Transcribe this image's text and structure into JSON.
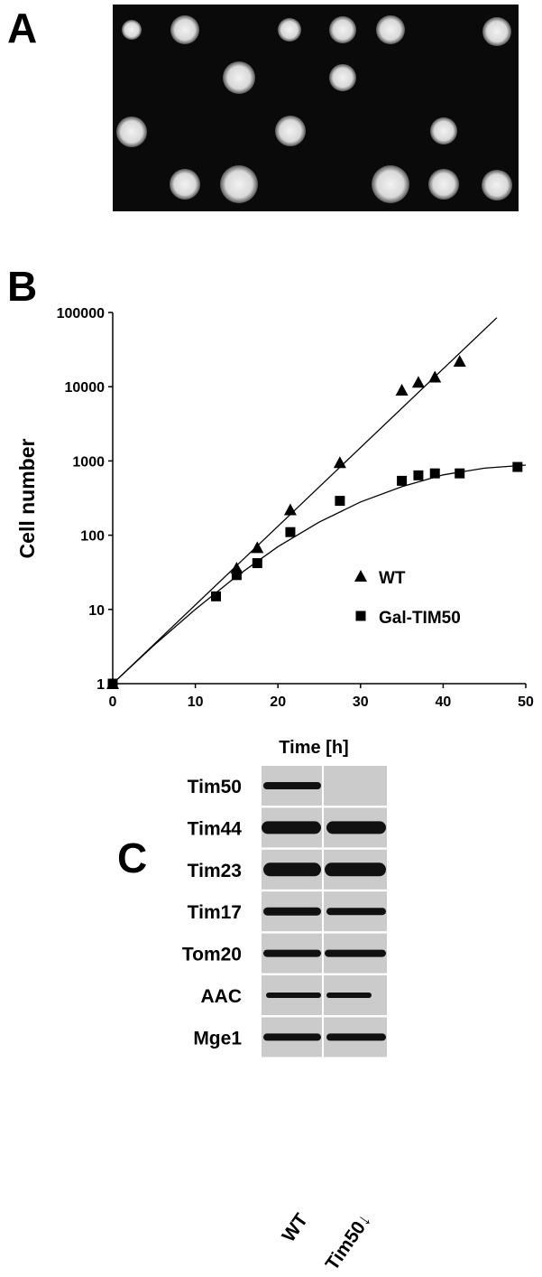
{
  "panel_labels": [
    "A",
    "B",
    "C"
  ],
  "chart_data": {
    "type": "scatter",
    "x_label": "Time [h]",
    "y_label": "Cell number",
    "xlim": [
      0,
      50
    ],
    "xticks": [
      0,
      10,
      20,
      30,
      40,
      50
    ],
    "ylim": [
      1,
      100000
    ],
    "yticks": [
      1,
      10,
      100,
      1000,
      10000,
      100000
    ],
    "log_y": true,
    "grid": false,
    "legend": "right",
    "series": [
      {
        "name": "WT",
        "color": "#000000",
        "marker": "triangle",
        "x": [
          0,
          15,
          17.5,
          21.5,
          27.5,
          35,
          37,
          39,
          42
        ],
        "values": [
          1,
          36,
          68,
          220,
          950,
          9000,
          11500,
          13500,
          22000
        ]
      },
      {
        "name": "Gal-TIM50",
        "color": "#000000",
        "marker": "square",
        "x": [
          0,
          12.5,
          15,
          17.5,
          21.5,
          27.5,
          35,
          37,
          39,
          42,
          49
        ],
        "values": [
          1,
          15,
          29,
          42,
          110,
          290,
          540,
          640,
          680,
          680,
          830
        ]
      }
    ],
    "fit_lines": [
      {
        "color": "#000000",
        "x": [
          0,
          46.5
        ],
        "values": [
          1,
          85000
        ]
      },
      {
        "color": "#000000",
        "x": [
          0,
          5,
          10,
          15,
          20,
          25,
          30,
          35,
          40,
          45,
          50
        ],
        "values": [
          1,
          3.3,
          10,
          28,
          70,
          150,
          280,
          450,
          650,
          800,
          880
        ]
      }
    ]
  },
  "blot": {
    "rows": [
      "Tim50",
      "Tim44",
      "Tim23",
      "Tim17",
      "Tom20",
      "AAC",
      "Mge1"
    ],
    "lanes": [
      "WT",
      "Tim50↓"
    ]
  }
}
